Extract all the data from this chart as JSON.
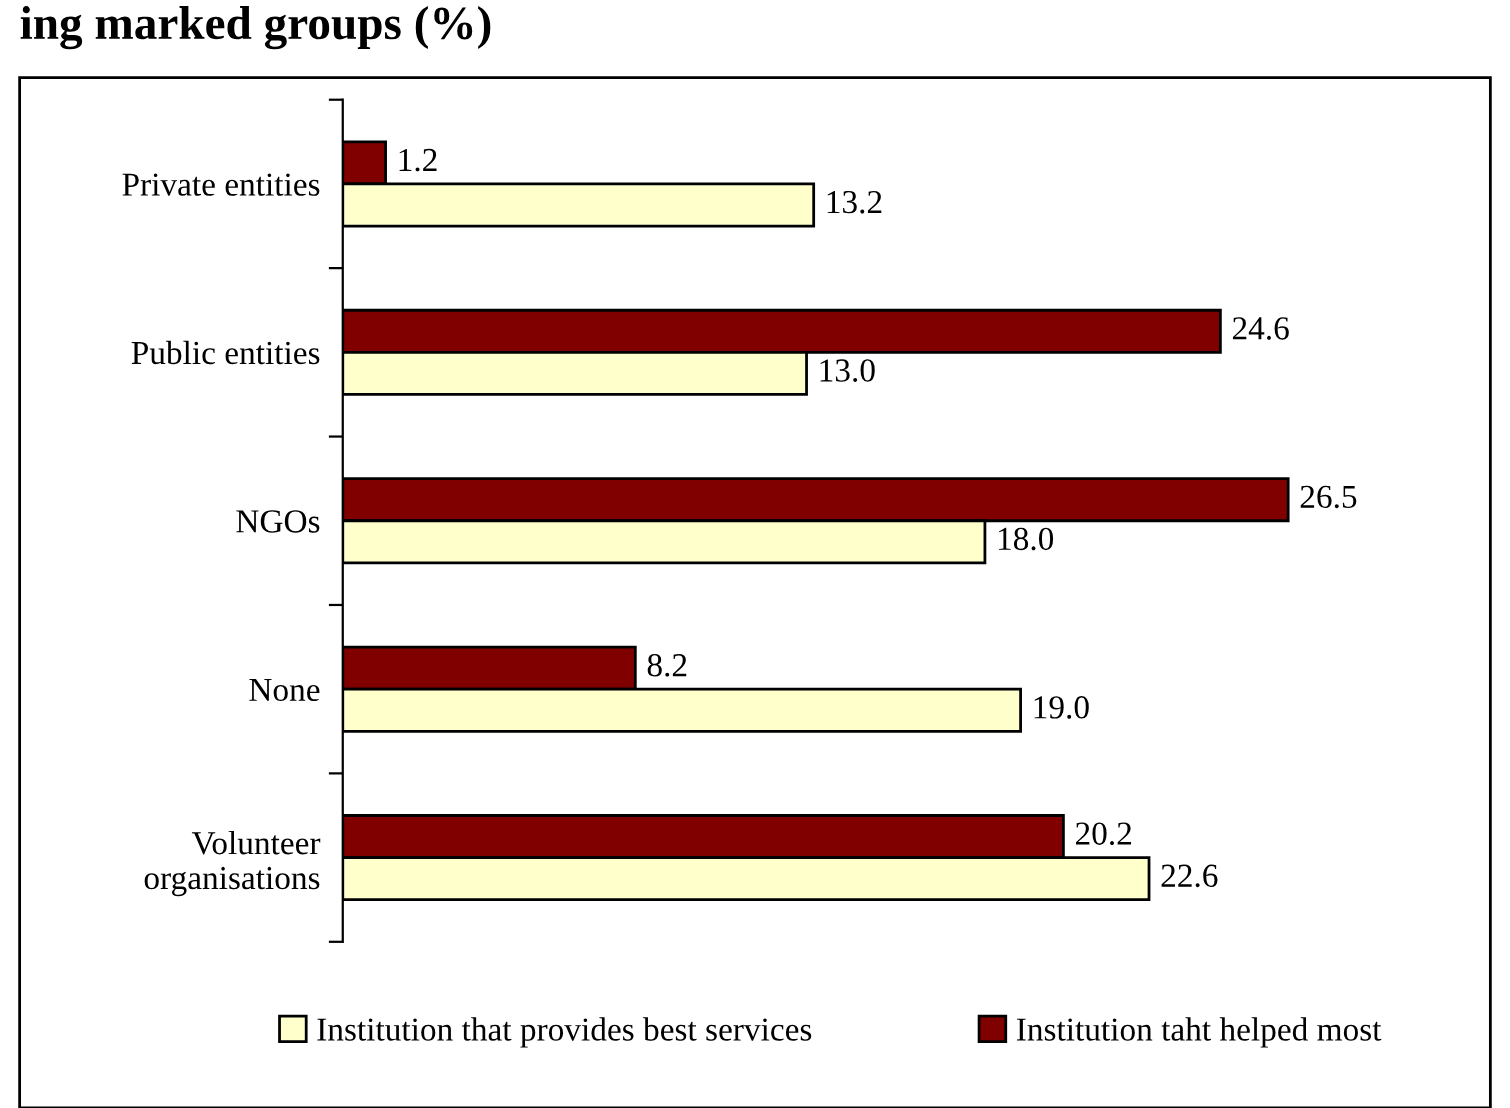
{
  "chart_data": {
    "type": "bar",
    "orientation": "horizontal",
    "title": "ing marked groups (%)",
    "categories": [
      "Private entities",
      "Public entities",
      "NGOs",
      "None",
      "Volunteer\norganisations"
    ],
    "series": [
      {
        "name": "Institution taht helped most",
        "color": "#800000",
        "values": [
          1.2,
          24.6,
          26.5,
          8.2,
          20.2
        ],
        "value_labels": [
          "1.2",
          "24.6",
          "26.5",
          "8.2",
          "20.2"
        ]
      },
      {
        "name": "Institution that provides best services",
        "color": "#ffffcc",
        "values": [
          13.2,
          13.0,
          18.0,
          19.0,
          22.6
        ],
        "value_labels": [
          "13.2",
          "13.0",
          "18.0",
          "19.0",
          "22.6"
        ]
      }
    ],
    "legend": "bottom",
    "grid": false,
    "tick_labels": "y"
  }
}
